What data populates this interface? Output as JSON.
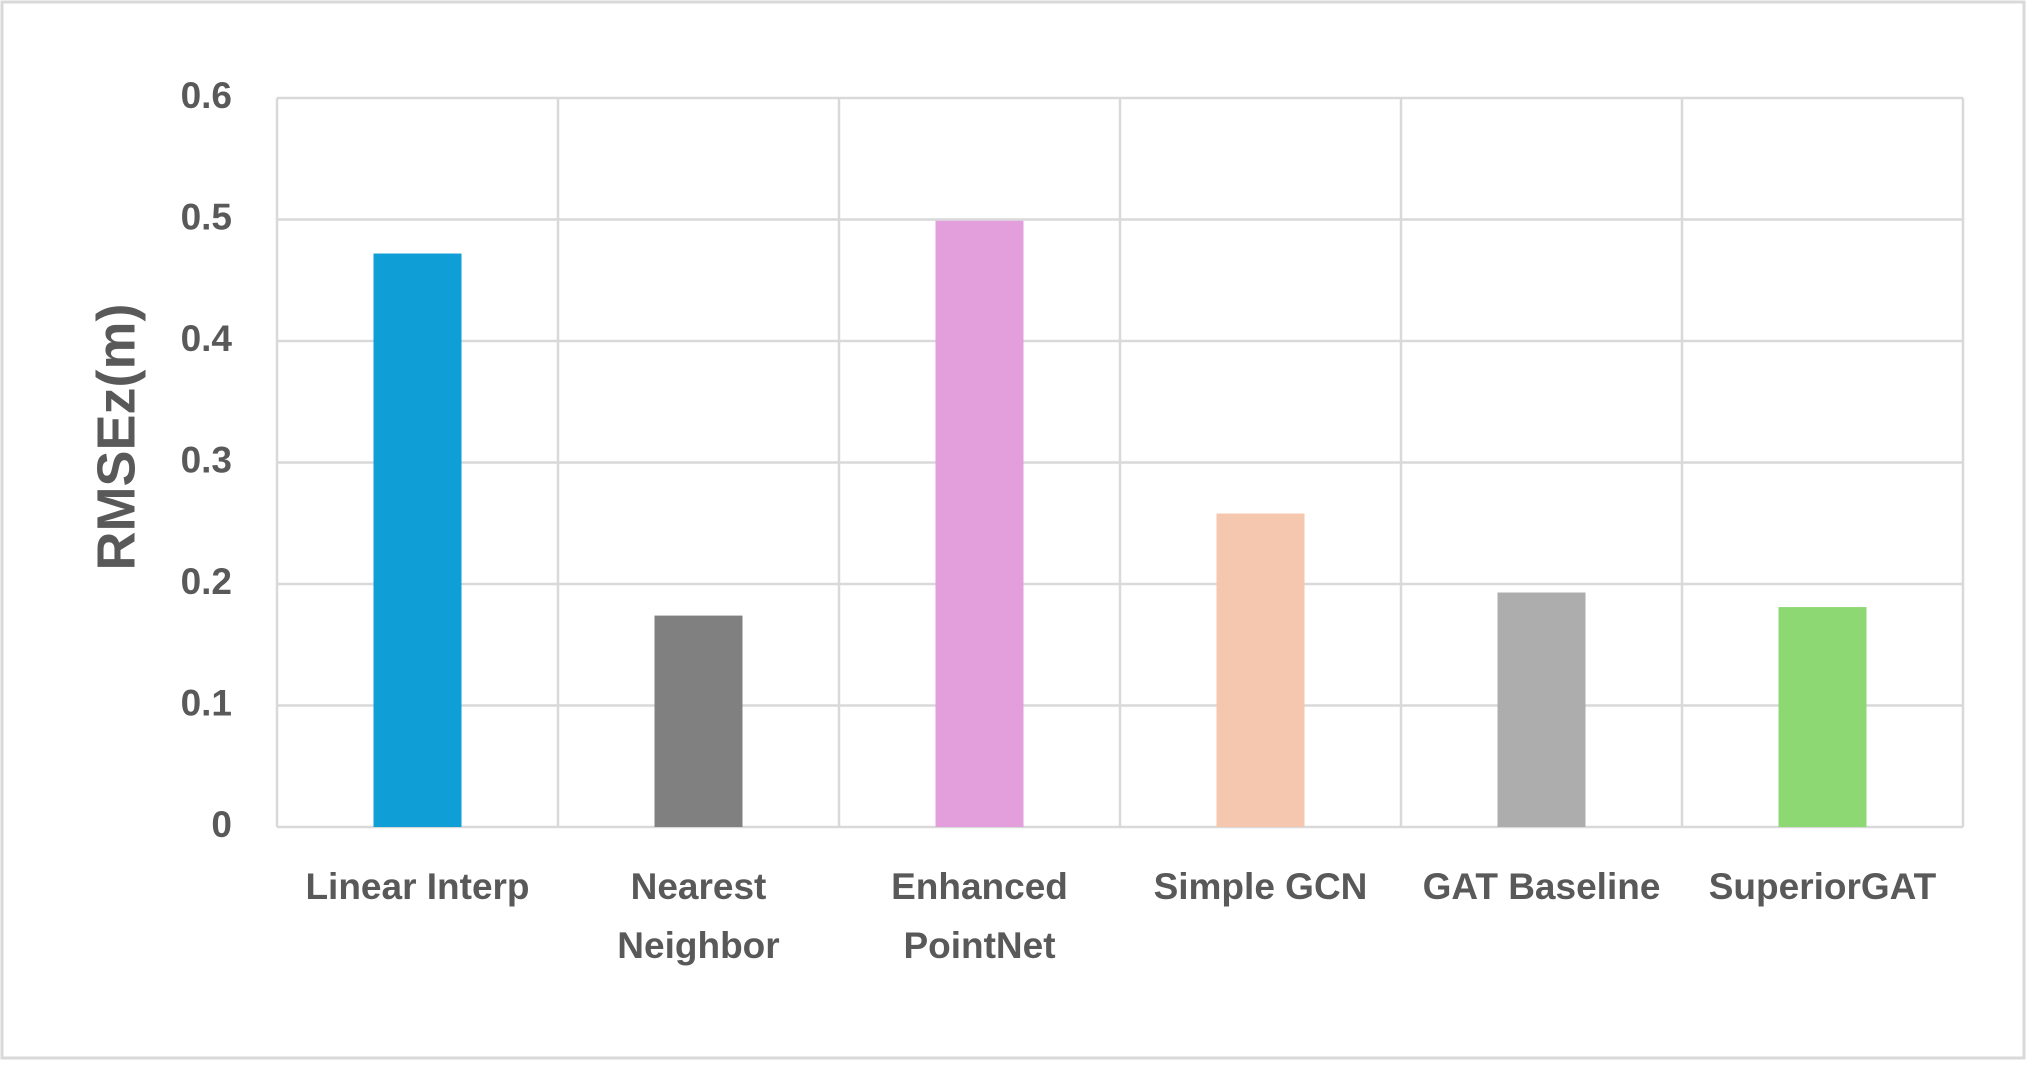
{
  "chart_data": {
    "type": "bar",
    "title": "",
    "xlabel": "",
    "ylabel": "RMSEz(m)",
    "ylim": [
      0,
      0.6
    ],
    "yticks": [
      "0",
      "0.1",
      "0.2",
      "0.3",
      "0.4",
      "0.5",
      "0.6"
    ],
    "grid": "both",
    "legend": "none",
    "categories": [
      [
        "Linear Interp"
      ],
      [
        "Nearest",
        "Neighbor"
      ],
      [
        "Enhanced",
        "PointNet"
      ],
      [
        "Simple GCN"
      ],
      [
        "GAT Baseline"
      ],
      [
        "SuperiorGAT"
      ]
    ],
    "values": [
      0.472,
      0.174,
      0.499,
      0.258,
      0.193,
      0.181
    ],
    "colors": [
      "#109ED6",
      "#808080",
      "#E29FDC",
      "#F5C7AE",
      "#ADADAD",
      "#8ED873"
    ]
  }
}
